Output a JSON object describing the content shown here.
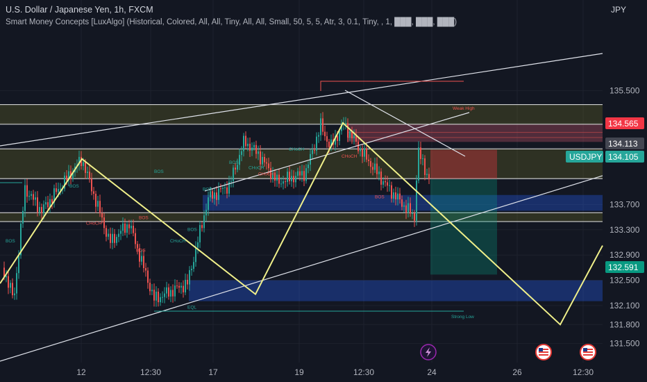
{
  "header": {
    "title": "U.S. Dollar / Japanese Yen, 1h, FXCM",
    "indicator": "Smart Money Concepts [LuxAlgo] (Historical, Colored, All, All, Tiny, All, All, Small, 50, 5, 5, Atr, 3, 0.1, Tiny, , 1, ███, ███, ███)",
    "currency": "JPY"
  },
  "colors": {
    "background": "#131722",
    "up": "#26a69a",
    "down": "#ef5350",
    "zigzag": "#f0f08a",
    "channel": "#e0e3eb",
    "zone_olive": "#6b6b2a",
    "zone_blue": "#2962ff",
    "zone_pink": "#c2536a",
    "bos": "#26a69a",
    "choch_down": "#ef5350",
    "symbol_tag": "#26a69a",
    "stop_tag": "#f23645",
    "target_tag": "#089981"
  },
  "chart_data": {
    "type": "candlestick",
    "symbol": "USDJPY",
    "timeframe": "1h",
    "x_ticks": [
      "12",
      "12:30",
      "17",
      "19",
      "12:30",
      "24",
      "26",
      "12:30"
    ],
    "y_ticks": [
      135.5,
      135.0,
      134.6,
      134.1,
      133.7,
      133.3,
      132.9,
      132.5,
      132.1,
      131.8,
      131.5
    ],
    "y_tick_labels": [
      "135.500",
      "135.000",
      "",
      "",
      "133.700",
      "133.300",
      "132.900",
      "132.500",
      "132.100",
      "131.800",
      "131.500"
    ],
    "ylim": [
      131.3,
      135.9
    ],
    "price_tags": [
      {
        "name": "stop",
        "value": 134.565,
        "label": "134.565"
      },
      {
        "name": "secondary",
        "value": 134.113,
        "label": "134.113"
      },
      {
        "name": "current",
        "value": 134.105,
        "label": "134.105",
        "symbol": "USDJPY"
      },
      {
        "name": "target",
        "value": 132.591,
        "label": "132.591"
      }
    ],
    "horizontal_levels": [
      135.28,
      134.97,
      134.58,
      134.11,
      133.57,
      133.43
    ],
    "zones": [
      {
        "name": "premium-zone",
        "top": 135.28,
        "bottom": 134.97,
        "color": "olive"
      },
      {
        "name": "equilibrium-zone",
        "top": 134.58,
        "bottom": 134.11,
        "color": "olive"
      },
      {
        "name": "discount-zone",
        "top": 133.57,
        "bottom": 133.43,
        "color": "olive"
      },
      {
        "name": "order-block-1",
        "top": 133.85,
        "bottom": 133.6,
        "color": "blue"
      },
      {
        "name": "order-block-2",
        "top": 132.5,
        "bottom": 132.17,
        "color": "blue"
      },
      {
        "name": "supply-block",
        "top": 134.97,
        "bottom": 134.69,
        "color": "pink"
      }
    ],
    "zigzag": [
      {
        "x": 0,
        "y": 132.45
      },
      {
        "x": 1,
        "y": 134.42
      },
      {
        "x": 3,
        "y": 132.28
      },
      {
        "x": 4,
        "y": 134.99
      },
      {
        "x": 6,
        "y": 131.8
      },
      {
        "x": 7,
        "y": 133.05
      }
    ],
    "annotations": [
      {
        "text": "BOS",
        "value": 134.2,
        "kind": "bos"
      },
      {
        "text": "BOS",
        "value": 133.1,
        "kind": "bos"
      },
      {
        "text": "BOS",
        "value": 133.97,
        "kind": "bos"
      },
      {
        "text": "BOS",
        "value": 133.92,
        "kind": "bos"
      },
      {
        "text": "BOS",
        "value": 134.34,
        "kind": "bos"
      },
      {
        "text": "CHoCH",
        "value": 133.1,
        "kind": "bos"
      },
      {
        "text": "CHoCH",
        "value": 134.26,
        "kind": "bos"
      },
      {
        "text": "CHoCH",
        "value": 134.55,
        "kind": "bos"
      },
      {
        "text": "BOS",
        "value": 133.28,
        "kind": "bos"
      },
      {
        "text": "BOS",
        "value": 133.47,
        "kind": "down"
      },
      {
        "text": "BOS",
        "value": 132.95,
        "kind": "down"
      },
      {
        "text": "CHoCH",
        "value": 133.38,
        "kind": "down"
      },
      {
        "text": "CHoCH",
        "value": 134.16,
        "kind": "down"
      },
      {
        "text": "CHoCH",
        "value": 134.44,
        "kind": "down"
      },
      {
        "text": "BOS",
        "value": 133.8,
        "kind": "down"
      },
      {
        "text": "EQL",
        "value": 132.05,
        "kind": "bos"
      },
      {
        "text": "Strong Low",
        "value": 131.9,
        "kind": "bos"
      },
      {
        "text": "Weak High",
        "value": 135.2,
        "kind": "down"
      }
    ]
  }
}
